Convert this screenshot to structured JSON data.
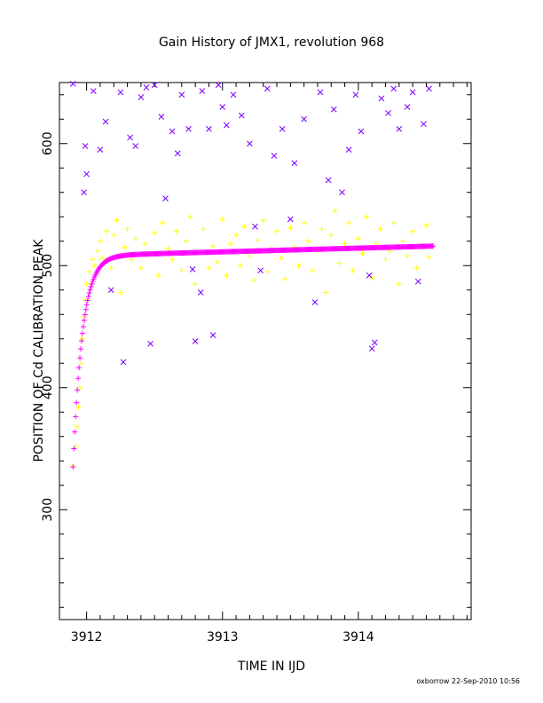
{
  "chart_data": {
    "type": "scatter",
    "title": "Gain History of JMX1, revolution 968",
    "xlabel": "TIME IN IJD",
    "ylabel": "POSITION OF Cd CALIBRATION PEAK",
    "xlim": [
      3911.8,
      3914.83
    ],
    "ylim": [
      210,
      650
    ],
    "xticks": [
      "3912",
      "3913",
      "3914"
    ],
    "yticks": [
      "300",
      "400",
      "500",
      "600"
    ],
    "footer": "oxborrow 22-Sep-2010 10:56",
    "colors": {
      "magenta": "#ff00ff",
      "yellow": "#ffff00",
      "purple": "#7f00ff"
    },
    "series": [
      {
        "marker": "plus",
        "color": "#ffff00",
        "points": [
          [
            3911.9,
            336
          ],
          [
            3911.92,
            352
          ],
          [
            3911.93,
            368
          ],
          [
            3911.94,
            384
          ],
          [
            3911.95,
            400
          ],
          [
            3911.96,
            420
          ],
          [
            3911.97,
            440
          ],
          [
            3911.98,
            458
          ],
          [
            3911.99,
            472
          ],
          [
            3912.0,
            485
          ],
          [
            3912.02,
            495
          ],
          [
            3912.04,
            505
          ],
          [
            3912.06,
            500
          ],
          [
            3912.08,
            512
          ],
          [
            3912.1,
            520
          ],
          [
            3912.12,
            506
          ],
          [
            3912.15,
            528
          ],
          [
            3912.18,
            498
          ],
          [
            3912.2,
            525
          ],
          [
            3912.22,
            537
          ],
          [
            3912.25,
            478
          ],
          [
            3912.28,
            515
          ],
          [
            3912.3,
            530
          ],
          [
            3912.33,
            505
          ],
          [
            3912.36,
            522
          ],
          [
            3912.4,
            498
          ],
          [
            3912.43,
            518
          ],
          [
            3912.46,
            510
          ],
          [
            3912.5,
            527
          ],
          [
            3912.53,
            492
          ],
          [
            3912.56,
            535
          ],
          [
            3912.6,
            514
          ],
          [
            3912.63,
            505
          ],
          [
            3912.66,
            528
          ],
          [
            3912.7,
            496
          ],
          [
            3912.73,
            520
          ],
          [
            3912.76,
            540
          ],
          [
            3912.8,
            485
          ],
          [
            3912.83,
            511
          ],
          [
            3912.86,
            530
          ],
          [
            3912.9,
            498
          ],
          [
            3912.93,
            516
          ],
          [
            3912.96,
            503
          ],
          [
            3913.0,
            538
          ],
          [
            3913.03,
            492
          ],
          [
            3913.06,
            518
          ],
          [
            3913.1,
            525
          ],
          [
            3913.13,
            500
          ],
          [
            3913.16,
            532
          ],
          [
            3913.2,
            508
          ],
          [
            3913.23,
            488
          ],
          [
            3913.26,
            521
          ],
          [
            3913.3,
            537
          ],
          [
            3913.33,
            495
          ],
          [
            3913.36,
            514
          ],
          [
            3913.4,
            528
          ],
          [
            3913.43,
            506
          ],
          [
            3913.46,
            489
          ],
          [
            3913.5,
            531
          ],
          [
            3913.53,
            515
          ],
          [
            3913.56,
            500
          ],
          [
            3913.6,
            535
          ],
          [
            3913.63,
            520
          ],
          [
            3913.66,
            496
          ],
          [
            3913.7,
            512
          ],
          [
            3913.73,
            530
          ],
          [
            3913.76,
            478
          ],
          [
            3913.8,
            525
          ],
          [
            3913.83,
            545
          ],
          [
            3913.86,
            502
          ],
          [
            3913.9,
            518
          ],
          [
            3913.93,
            535
          ],
          [
            3913.96,
            496
          ],
          [
            3914.0,
            522
          ],
          [
            3914.03,
            510
          ],
          [
            3914.06,
            540
          ],
          [
            3914.1,
            490
          ],
          [
            3914.13,
            518
          ],
          [
            3914.16,
            530
          ],
          [
            3914.2,
            505
          ],
          [
            3914.23,
            512
          ],
          [
            3914.26,
            535
          ],
          [
            3914.3,
            485
          ],
          [
            3914.33,
            520
          ],
          [
            3914.36,
            508
          ],
          [
            3914.4,
            528
          ],
          [
            3914.43,
            498
          ],
          [
            3914.46,
            517
          ],
          [
            3914.5,
            533
          ],
          [
            3914.52,
            507
          ]
        ]
      },
      {
        "marker": "cross",
        "color": "#7f00ff",
        "points": [
          [
            3911.9,
            649
          ],
          [
            3911.98,
            560
          ],
          [
            3911.99,
            598
          ],
          [
            3912.0,
            575
          ],
          [
            3912.05,
            643
          ],
          [
            3912.1,
            595
          ],
          [
            3912.14,
            618
          ],
          [
            3912.18,
            480
          ],
          [
            3912.25,
            642
          ],
          [
            3912.27,
            421
          ],
          [
            3912.32,
            605
          ],
          [
            3912.36,
            598
          ],
          [
            3912.4,
            638
          ],
          [
            3912.44,
            646
          ],
          [
            3912.47,
            436
          ],
          [
            3912.5,
            648
          ],
          [
            3912.55,
            622
          ],
          [
            3912.58,
            555
          ],
          [
            3912.63,
            610
          ],
          [
            3912.67,
            592
          ],
          [
            3912.7,
            640
          ],
          [
            3912.75,
            612
          ],
          [
            3912.78,
            497
          ],
          [
            3912.8,
            438
          ],
          [
            3912.84,
            478
          ],
          [
            3912.85,
            643
          ],
          [
            3912.9,
            612
          ],
          [
            3912.93,
            443
          ],
          [
            3912.97,
            648
          ],
          [
            3913.0,
            630
          ],
          [
            3913.03,
            615
          ],
          [
            3913.08,
            640
          ],
          [
            3913.14,
            623
          ],
          [
            3913.2,
            600
          ],
          [
            3913.24,
            532
          ],
          [
            3913.28,
            496
          ],
          [
            3913.33,
            645
          ],
          [
            3913.38,
            590
          ],
          [
            3913.44,
            612
          ],
          [
            3913.5,
            538
          ],
          [
            3913.53,
            584
          ],
          [
            3913.6,
            620
          ],
          [
            3913.68,
            470
          ],
          [
            3913.72,
            642
          ],
          [
            3913.78,
            570
          ],
          [
            3913.82,
            628
          ],
          [
            3913.88,
            560
          ],
          [
            3913.93,
            595
          ],
          [
            3913.98,
            640
          ],
          [
            3914.02,
            610
          ],
          [
            3914.08,
            492
          ],
          [
            3914.1,
            432
          ],
          [
            3914.12,
            437
          ],
          [
            3914.17,
            637
          ],
          [
            3914.22,
            625
          ],
          [
            3914.26,
            645
          ],
          [
            3914.3,
            612
          ],
          [
            3914.36,
            630
          ],
          [
            3914.4,
            642
          ],
          [
            3914.44,
            487
          ],
          [
            3914.48,
            616
          ],
          [
            3914.52,
            645
          ]
        ]
      },
      {
        "marker": "plus",
        "color": "#ff00ff",
        "form": "gain_curve",
        "x_range": [
          3911.9,
          3914.55
        ],
        "baseline_start": 509,
        "baseline_end": 516,
        "baseline_x": [
          3912.25,
          3914.55
        ],
        "start_value": 335,
        "rise_time": 0.07
      }
    ]
  }
}
